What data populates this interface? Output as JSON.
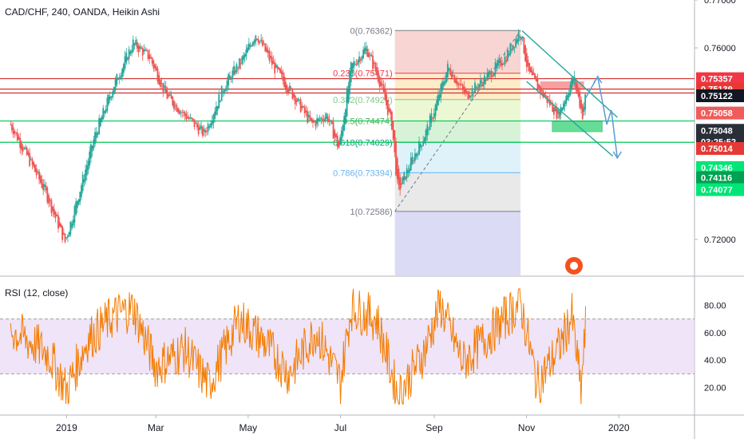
{
  "header": {
    "symbol_title": "CAD/CHF, 240, OANDA, Heikin Ashi",
    "rsi_title": "RSI (12, close)"
  },
  "colors": {
    "up": "#26a69a",
    "down": "#ef5350",
    "rsi_line": "#f57c00",
    "rsi_band": "#e8d9f5",
    "fib_line": "#787b86",
    "green_level": "#00c853",
    "red_level": "#d32f2f"
  },
  "chart_data": [
    {
      "type": "candlestick",
      "style": "Heikin Ashi",
      "ylim": [
        0.7125,
        0.77
      ],
      "y_ticks": [
        "0.77000",
        "0.76000",
        "0.75357",
        "0.75139",
        "0.75122",
        "0.75058",
        "0.75048",
        "0.75014",
        "0.74346",
        "0.74116",
        "0.74077",
        "0.72000"
      ],
      "x_ticks": [
        "2019",
        "Mar",
        "May",
        "Jul",
        "Sep",
        "Nov",
        "2020"
      ],
      "x_tick_dates": [
        "2019-01-01",
        "2019-03-01",
        "2019-05-01",
        "2019-07-01",
        "2019-09-01",
        "2019-11-01",
        "2020-01-01"
      ],
      "price_path": [
        [
          "2018-11-25",
          0.744
        ],
        [
          "2018-12-05",
          0.738
        ],
        [
          "2018-12-18",
          0.73
        ],
        [
          "2018-12-31",
          0.7195
        ],
        [
          "2019-01-06",
          0.726
        ],
        [
          "2019-01-20",
          0.742
        ],
        [
          "2019-02-01",
          0.752
        ],
        [
          "2019-02-14",
          0.761
        ],
        [
          "2019-02-25",
          0.758
        ],
        [
          "2019-03-08",
          0.75
        ],
        [
          "2019-03-20",
          0.746
        ],
        [
          "2019-04-02",
          0.742
        ],
        [
          "2019-04-15",
          0.752
        ],
        [
          "2019-04-28",
          0.758
        ],
        [
          "2019-05-06",
          0.763
        ],
        [
          "2019-05-18",
          0.756
        ],
        [
          "2019-05-31",
          0.75
        ],
        [
          "2019-06-12",
          0.744
        ],
        [
          "2019-06-22",
          0.746
        ],
        [
          "2019-06-30",
          0.739
        ],
        [
          "2019-07-08",
          0.756
        ],
        [
          "2019-07-18",
          0.76
        ],
        [
          "2019-07-27",
          0.753
        ],
        [
          "2019-08-04",
          0.744
        ],
        [
          "2019-08-08",
          0.73
        ],
        [
          "2019-08-18",
          0.737
        ],
        [
          "2019-08-26",
          0.742
        ],
        [
          "2019-09-01",
          0.747
        ],
        [
          "2019-09-10",
          0.756
        ],
        [
          "2019-09-22",
          0.75
        ],
        [
          "2019-10-06",
          0.754
        ],
        [
          "2019-10-18",
          0.758
        ],
        [
          "2019-10-28",
          0.7636
        ],
        [
          "2019-11-02",
          0.755
        ],
        [
          "2019-11-10",
          0.751
        ],
        [
          "2019-11-22",
          0.746
        ],
        [
          "2019-12-02",
          0.754
        ],
        [
          "2019-12-08",
          0.746
        ],
        [
          "2019-12-10",
          0.75
        ]
      ],
      "fibonacci": [
        {
          "ratio": "0",
          "price": 0.76362,
          "label": "0(0.76362)"
        },
        {
          "ratio": "0.236",
          "price": 0.75471,
          "label": "0.236(0.75471)"
        },
        {
          "ratio": "0.382",
          "price": 0.7492,
          "label": "0.382(0.74920)"
        },
        {
          "ratio": "0.5",
          "price": 0.74474,
          "label": "0.5(0.74474)"
        },
        {
          "ratio": "0.618",
          "price": 0.74029,
          "label": "0.618(0.74029)"
        },
        {
          "ratio": "0.786",
          "price": 0.73394,
          "label": "0.786(0.73394)"
        },
        {
          "ratio": "1",
          "price": 0.72586,
          "label": "1(0.72586)"
        }
      ],
      "fib_start_date": "2019-08-06",
      "fib_end_date": "2019-10-28",
      "fib_zone_colors": [
        "#f4c7c3",
        "#fde6b7",
        "#e6f4c5",
        "#c8efc9",
        "#d4edf7",
        "#e2e2e2",
        "#cfcff2"
      ],
      "horizontal_levels": [
        {
          "price": 0.75357,
          "color": "#d32f2f"
        },
        {
          "price": 0.75139,
          "color": "#d32f2f"
        },
        {
          "price": 0.75058,
          "color": "#d32f2f"
        },
        {
          "price": 0.74474,
          "color": "#00c853"
        },
        {
          "price": 0.74029,
          "color": "#00c853"
        }
      ],
      "price_tags": [
        {
          "text": "0.75357",
          "price": 0.75357,
          "bg": "#f23645",
          "fg": "#ffffff"
        },
        {
          "text": "0.75139",
          "price": 0.75139,
          "bg": "#e53935",
          "fg": "#ffffff"
        },
        {
          "text": "0.75122",
          "price": 0.75,
          "bg": "#131722",
          "fg": "#ffffff"
        },
        {
          "text": "0.75058",
          "price": 0.7464,
          "bg": "#f05c5c",
          "fg": "#ffffff"
        },
        {
          "text": "0.75048",
          "price": 0.74279,
          "bg": "#2a2e39",
          "fg": "#ffffff"
        },
        {
          "text": "03:25:52",
          "price": 0.7404,
          "bg": "#2a2e39",
          "fg": "#ffffff"
        },
        {
          "text": "0.75014",
          "price": 0.739,
          "bg": "#e53935",
          "fg": "#ffffff"
        },
        {
          "text": "0.74346",
          "price": 0.735,
          "bg": "#00e676",
          "fg": "#ffffff"
        },
        {
          "text": "0.74116",
          "price": 0.7329,
          "bg": "#00a152",
          "fg": "#ffffff"
        },
        {
          "text": "0.74077",
          "price": 0.7304,
          "bg": "#00e676",
          "fg": "#ffffff"
        }
      ],
      "channel": [
        {
          "from": [
            "2019-10-29",
            0.7636
          ],
          "to": [
            "2019-12-31",
            0.7455
          ]
        },
        {
          "from": [
            "2019-11-01",
            0.753
          ],
          "to": [
            "2019-12-28",
            0.7374
          ]
        }
      ],
      "fib_diagonal": {
        "from": [
          "2019-08-06",
          0.72586
        ],
        "to": [
          "2019-10-28",
          0.76362
        ]
      },
      "sell_zone": {
        "from": "2019-11-10",
        "to": "2019-12-09",
        "top": 0.753,
        "bottom": 0.7515
      },
      "buy_zone": {
        "from": "2019-11-18",
        "to": "2019-12-21",
        "top": 0.7447,
        "bottom": 0.7425
      },
      "projection": [
        [
          "2019-12-10",
          0.7495
        ],
        [
          "2019-12-18",
          0.754
        ],
        [
          "2019-12-24",
          0.744
        ],
        [
          "2019-12-27",
          0.747
        ],
        [
          "2019-12-31",
          0.737
        ]
      ]
    },
    {
      "type": "line",
      "title": "RSI (12, close)",
      "ylim": [
        0,
        100
      ],
      "y_ticks": [
        "80.00",
        "60.00",
        "40.00",
        "20.00"
      ],
      "band": [
        30,
        70
      ],
      "rsi_path": [
        [
          "2018-11-25",
          62
        ],
        [
          "2018-12-20",
          45
        ],
        [
          "2019-01-01",
          18
        ],
        [
          "2019-01-15",
          55
        ],
        [
          "2019-02-01",
          72
        ],
        [
          "2019-02-14",
          78
        ],
        [
          "2019-03-01",
          35
        ],
        [
          "2019-03-20",
          48
        ],
        [
          "2019-04-05",
          22
        ],
        [
          "2019-04-25",
          70
        ],
        [
          "2019-05-10",
          55
        ],
        [
          "2019-05-28",
          30
        ],
        [
          "2019-06-15",
          62
        ],
        [
          "2019-07-01",
          24
        ],
        [
          "2019-07-08",
          78
        ],
        [
          "2019-07-25",
          70
        ],
        [
          "2019-08-08",
          14
        ],
        [
          "2019-08-25",
          45
        ],
        [
          "2019-09-05",
          80
        ],
        [
          "2019-09-20",
          38
        ],
        [
          "2019-10-10",
          62
        ],
        [
          "2019-10-28",
          82
        ],
        [
          "2019-11-08",
          22
        ],
        [
          "2019-11-22",
          48
        ],
        [
          "2019-12-01",
          72
        ],
        [
          "2019-12-07",
          18
        ],
        [
          "2019-12-10",
          64
        ]
      ]
    }
  ]
}
